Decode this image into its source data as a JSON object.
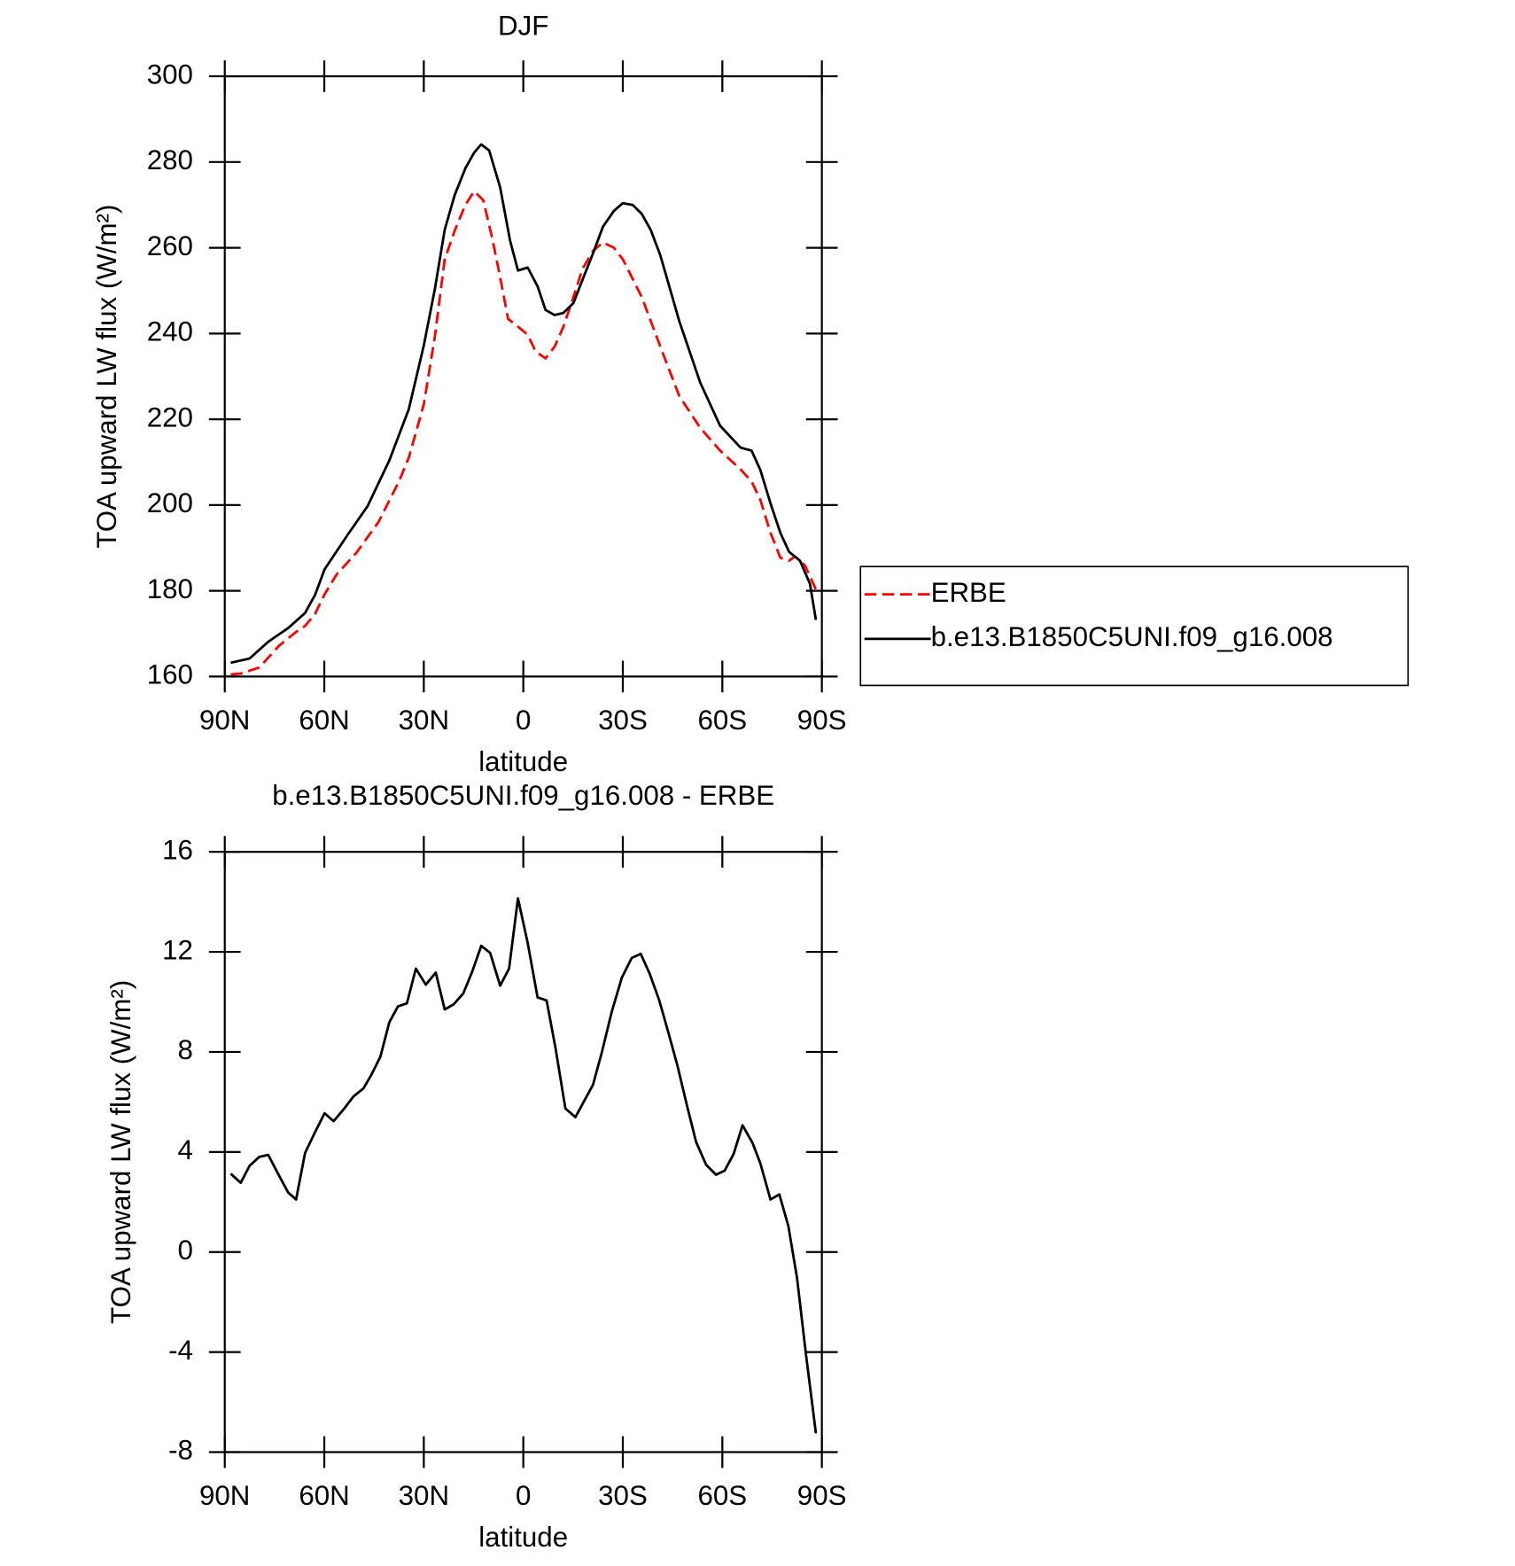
{
  "chart_data": [
    {
      "type": "line",
      "title": "DJF",
      "xlabel": "latitude",
      "ylabel": "TOA upward LW flux (W/m²)",
      "xlim": [
        90,
        -90
      ],
      "xticks": [
        {
          "value": 90,
          "label": "90N"
        },
        {
          "value": 60,
          "label": "60N"
        },
        {
          "value": 30,
          "label": "30N"
        },
        0,
        {
          "value": -30,
          "label": "30S"
        },
        {
          "value": -60,
          "label": "60S"
        },
        {
          "value": -90,
          "label": "90S"
        }
      ],
      "ylim": [
        160,
        300
      ],
      "yticks": [
        160,
        180,
        200,
        220,
        240,
        260,
        280,
        300
      ],
      "legend": "outside-right",
      "series": [
        {
          "name": "ERBE",
          "color": "#ff0000",
          "style": "dashed",
          "x": [
            88.2,
            85.2,
            79.6,
            73.6,
            68.5,
            65.8,
            62.8,
            59.9,
            56.3,
            50.3,
            43.7,
            37.5,
            34.5,
            30.0,
            26.7,
            23.7,
            20.7,
            17.5,
            14.8,
            12.1,
            9.4,
            7.0,
            4.6,
            1.6,
            -1.3,
            -3.7,
            -6.7,
            -9.4,
            -12.1,
            -15.1,
            -17.8,
            -21.0,
            -24.0,
            -27.3,
            -30.0,
            -35.7,
            -41.3,
            -47.0,
            -53.3,
            -59.3,
            -65.5,
            -68.8,
            -71.5,
            -74.5,
            -77.5,
            -80.1,
            -81.9,
            -84.9,
            -88.2
          ],
          "values": [
            160.5,
            160.7,
            162.1,
            167.2,
            170.4,
            171.8,
            174.6,
            179.2,
            183.8,
            188.9,
            196.0,
            205.5,
            211.1,
            223.5,
            239.2,
            257.3,
            264.0,
            270.0,
            273.2,
            271.1,
            262.3,
            253.1,
            243.4,
            241.6,
            239.7,
            235.8,
            234.2,
            236.9,
            241.6,
            248.5,
            255.0,
            259.3,
            261.2,
            260.0,
            257.3,
            248.5,
            236.9,
            225.4,
            218.0,
            212.7,
            208.3,
            205.5,
            201.1,
            193.5,
            187.7,
            187.0,
            188.0,
            185.9,
            180.3
          ]
        },
        {
          "name": "b.e13.B1850C5UNI.f09_g16.008",
          "color": "#000000",
          "style": "solid",
          "x": [
            88.2,
            82.5,
            76.9,
            70.9,
            65.8,
            62.8,
            59.9,
            53.0,
            47.0,
            40.4,
            34.5,
            30.0,
            26.7,
            23.7,
            20.7,
            17.5,
            14.8,
            12.7,
            10.3,
            7.0,
            4.0,
            1.6,
            -1.3,
            -4.3,
            -6.7,
            -9.4,
            -12.1,
            -15.1,
            -17.8,
            -21.0,
            -24.0,
            -27.3,
            -30.0,
            -33.0,
            -35.7,
            -38.4,
            -41.3,
            -47.0,
            -53.3,
            -59.3,
            -65.5,
            -68.8,
            -71.5,
            -74.5,
            -77.5,
            -80.1,
            -83.4,
            -86.4,
            -88.2
          ],
          "values": [
            163.2,
            164.2,
            168.1,
            171.3,
            174.8,
            179.0,
            185.0,
            193.0,
            199.7,
            210.4,
            222.4,
            237.2,
            250.3,
            264.2,
            272.3,
            278.5,
            282.2,
            284.1,
            282.7,
            274.1,
            261.7,
            254.7,
            255.4,
            251.0,
            245.5,
            244.3,
            244.8,
            247.1,
            252.4,
            258.7,
            264.9,
            268.6,
            270.4,
            270.0,
            267.9,
            264.2,
            258.2,
            242.9,
            228.6,
            218.5,
            213.4,
            212.7,
            208.1,
            200.4,
            193.5,
            189.1,
            187.0,
            181.7,
            173.2
          ]
        }
      ]
    },
    {
      "type": "line",
      "title": "b.e13.B1850C5UNI.f09_g16.008 - ERBE",
      "xlabel": "latitude",
      "ylabel": "TOA upward LW flux (W/m²)",
      "xlim": [
        90,
        -90
      ],
      "xticks": [
        {
          "value": 90,
          "label": "90N"
        },
        {
          "value": 60,
          "label": "60N"
        },
        {
          "value": 30,
          "label": "30N"
        },
        0,
        {
          "value": -30,
          "label": "30S"
        },
        {
          "value": -60,
          "label": "60S"
        },
        {
          "value": -90,
          "label": "90S"
        }
      ],
      "ylim": [
        -8,
        16
      ],
      "yticks": [
        -8,
        -4,
        0,
        4,
        8,
        12,
        16
      ],
      "series": [
        {
          "color": "#000000",
          "style": "solid",
          "x": [
            88.2,
            85.2,
            82.5,
            79.6,
            76.9,
            73.6,
            70.9,
            68.5,
            65.8,
            62.8,
            59.9,
            57.2,
            54.2,
            51.2,
            48.2,
            45.8,
            43.1,
            40.4,
            37.8,
            35.1,
            32.4,
            29.4,
            26.4,
            23.7,
            21.0,
            18.1,
            15.4,
            12.7,
            10.0,
            7.0,
            4.3,
            1.6,
            -1.3,
            -4.3,
            -7.0,
            -9.7,
            -12.7,
            -15.7,
            -21.0,
            -23.7,
            -26.7,
            -29.7,
            -32.7,
            -35.4,
            -38.1,
            -41.0,
            -43.7,
            -46.4,
            -49.4,
            -52.1,
            -55.1,
            -58.1,
            -60.7,
            -63.4,
            -66.1,
            -69.1,
            -71.5,
            -74.5,
            -77.2,
            -79.9,
            -82.5,
            -85.2,
            -88.2
          ],
          "values": [
            3.13,
            2.77,
            3.45,
            3.8,
            3.88,
            3.05,
            2.38,
            2.1,
            3.96,
            4.79,
            5.55,
            5.23,
            5.7,
            6.22,
            6.54,
            7.09,
            7.8,
            9.19,
            9.82,
            9.94,
            11.33,
            10.69,
            11.17,
            9.7,
            9.9,
            10.34,
            11.21,
            12.24,
            11.96,
            10.65,
            11.33,
            14.14,
            12.36,
            10.18,
            10.06,
            8.16,
            5.74,
            5.39,
            6.69,
            8.0,
            9.62,
            10.97,
            11.76,
            11.92,
            11.13,
            10.06,
            8.79,
            7.49,
            5.82,
            4.4,
            3.49,
            3.09,
            3.25,
            3.92,
            5.07,
            4.36,
            3.53,
            2.1,
            2.3,
            1.03,
            -1.03,
            -4.08,
            -7.25
          ]
        }
      ]
    }
  ]
}
